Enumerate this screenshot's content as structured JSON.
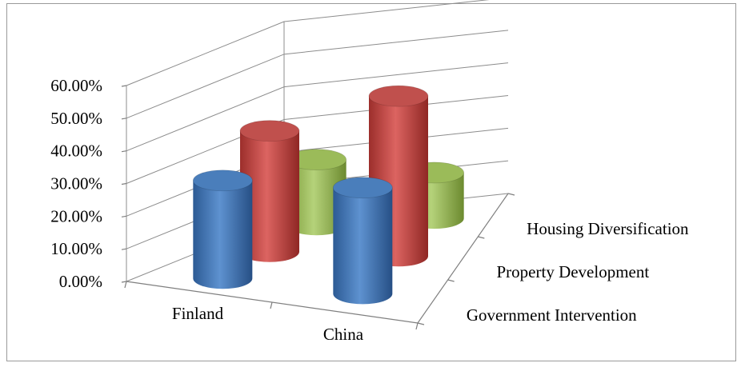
{
  "chart_data": {
    "type": "bar",
    "subtype": "3d-cylinder",
    "title": "",
    "xlabel": "",
    "ylabel": "",
    "categories": [
      "Finland",
      "China"
    ],
    "series": [
      {
        "name": "Government Intervention",
        "values": [
          0.3,
          0.325
        ],
        "color": "#4a7ebb"
      },
      {
        "name": "Property Development",
        "values": [
          0.37,
          0.49
        ],
        "color": "#c0504d"
      },
      {
        "name": "Housing Diversification",
        "values": [
          0.2,
          0.14
        ],
        "color": "#9bbb59"
      }
    ],
    "ylim": [
      0,
      0.6
    ],
    "y_ticks": [
      "0.00%",
      "10.00%",
      "20.00%",
      "30.00%",
      "40.00%",
      "50.00%",
      "60.00%"
    ],
    "grid": true,
    "legend": "none"
  }
}
